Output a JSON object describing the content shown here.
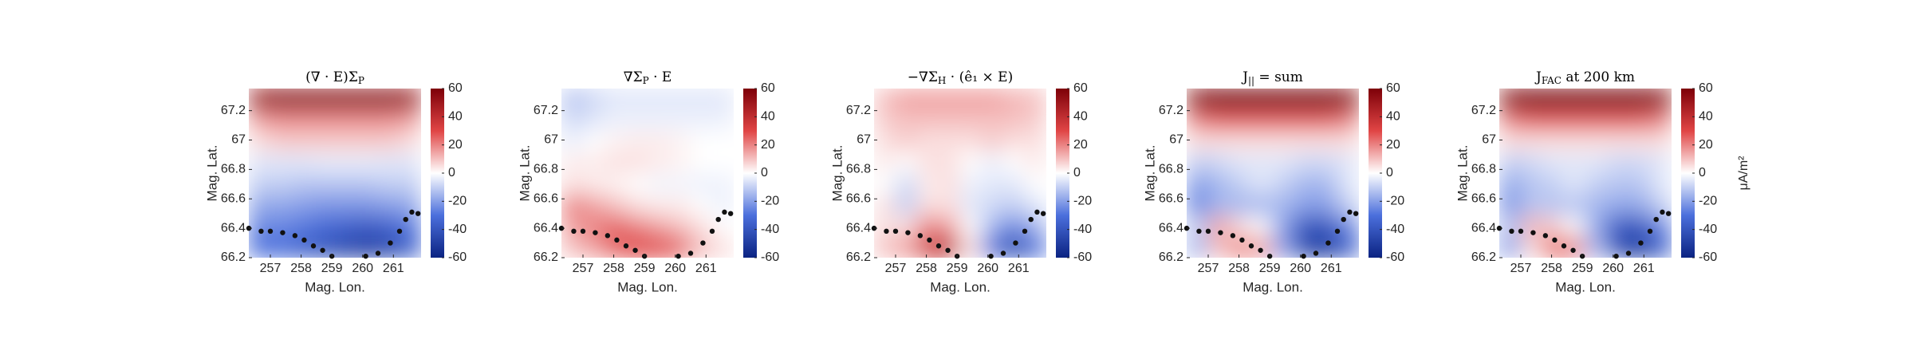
{
  "chart_data": [
    {
      "type": "heatmap",
      "title": "(∇ · E)Σ",
      "title_sub": "P",
      "xlabel": "Mag. Lon.",
      "ylabel": "Mag. Lat.",
      "x": [
        256.65,
        257.35,
        258.05,
        258.75,
        259.45,
        260.15,
        260.85,
        261.55
      ],
      "y": [
        66.272,
        66.416,
        66.559,
        66.703,
        66.847,
        66.991,
        67.134,
        67.278
      ],
      "z": [
        [
          -30,
          -30,
          -35,
          -40,
          -45,
          -48,
          -45,
          -35
        ],
        [
          -25,
          -25,
          -28,
          -32,
          -35,
          -38,
          -35,
          -28
        ],
        [
          -18,
          -18,
          -20,
          -22,
          -22,
          -22,
          -20,
          -18
        ],
        [
          -10,
          -10,
          -12,
          -12,
          -12,
          -12,
          -10,
          -10
        ],
        [
          -5,
          -5,
          -5,
          -4,
          -4,
          -4,
          -5,
          -5
        ],
        [
          5,
          8,
          8,
          8,
          8,
          8,
          8,
          5
        ],
        [
          15,
          18,
          18,
          18,
          18,
          18,
          18,
          15
        ],
        [
          50,
          55,
          55,
          55,
          55,
          55,
          55,
          50
        ]
      ],
      "xlim": [
        256.3,
        261.9
      ],
      "ylim": [
        66.2,
        67.35
      ],
      "xticks": [
        257,
        258,
        259,
        260,
        261
      ],
      "yticks": [
        66.2,
        66.4,
        66.6,
        66.8,
        67,
        67.2
      ],
      "clim": [
        -60,
        60
      ],
      "cticks": [
        -60,
        -40,
        -20,
        0,
        20,
        40,
        60
      ],
      "cmap": [
        "#0b2382",
        "#4b6fdc",
        "#ffffff",
        "#e04545",
        "#7d0008"
      ],
      "boundary": {
        "x": [
          256.3,
          256.7,
          257.0,
          257.4,
          257.8,
          258.1,
          258.4,
          258.7,
          259.0,
          null,
          260.1,
          260.5,
          260.9,
          261.2,
          261.4,
          261.6,
          261.8
        ],
        "y": [
          66.4,
          66.38,
          66.38,
          66.37,
          66.35,
          66.32,
          66.28,
          66.25,
          66.21,
          null,
          66.21,
          66.23,
          66.3,
          66.38,
          66.46,
          66.51,
          66.5
        ]
      }
    },
    {
      "type": "heatmap",
      "title": "∇Σ",
      "title_sub": "P",
      "title_tail": " · E",
      "xlabel": "Mag. Lon.",
      "ylabel": "Mag. Lat.",
      "x": [
        256.65,
        257.35,
        258.05,
        258.75,
        259.45,
        260.15,
        260.85,
        261.55
      ],
      "y": [
        66.272,
        66.416,
        66.559,
        66.703,
        66.847,
        66.991,
        67.134,
        67.278
      ],
      "z": [
        [
          10,
          15,
          25,
          30,
          30,
          25,
          10,
          5
        ],
        [
          15,
          20,
          25,
          20,
          15,
          10,
          5,
          0
        ],
        [
          20,
          15,
          10,
          5,
          3,
          3,
          0,
          -3
        ],
        [
          5,
          3,
          2,
          0,
          -2,
          -2,
          -3,
          -3
        ],
        [
          3,
          3,
          5,
          5,
          3,
          2,
          0,
          0
        ],
        [
          -3,
          0,
          2,
          3,
          3,
          2,
          0,
          0
        ],
        [
          -8,
          -5,
          -3,
          -3,
          -3,
          -3,
          -3,
          -3
        ],
        [
          -12,
          -8,
          -5,
          -5,
          -5,
          -5,
          -5,
          -5
        ]
      ],
      "xlim": [
        256.3,
        261.9
      ],
      "ylim": [
        66.2,
        67.35
      ],
      "xticks": [
        257,
        258,
        259,
        260,
        261
      ],
      "yticks": [
        66.2,
        66.4,
        66.6,
        66.8,
        67,
        67.2
      ],
      "clim": [
        -60,
        60
      ],
      "cticks": [
        -60,
        -40,
        -20,
        0,
        20,
        40,
        60
      ],
      "cmap": [
        "#0b2382",
        "#4b6fdc",
        "#ffffff",
        "#e04545",
        "#7d0008"
      ],
      "boundary": {
        "x": [
          256.3,
          256.7,
          257.0,
          257.4,
          257.8,
          258.1,
          258.4,
          258.7,
          259.0,
          null,
          260.1,
          260.5,
          260.9,
          261.2,
          261.4,
          261.6,
          261.8
        ],
        "y": [
          66.4,
          66.38,
          66.38,
          66.37,
          66.35,
          66.32,
          66.28,
          66.25,
          66.21,
          null,
          66.21,
          66.23,
          66.3,
          66.38,
          66.46,
          66.51,
          66.5
        ]
      }
    },
    {
      "type": "heatmap",
      "title": "−∇Σ",
      "title_sub": "H",
      "title_tail": " · (ê₁ × E)",
      "xlabel": "Mag. Lon.",
      "ylabel": "Mag. Lat.",
      "x": [
        256.65,
        257.35,
        258.05,
        258.75,
        259.45,
        260.15,
        260.85,
        261.55
      ],
      "y": [
        66.272,
        66.416,
        66.559,
        66.703,
        66.847,
        66.991,
        67.134,
        67.278
      ],
      "z": [
        [
          10,
          15,
          35,
          40,
          5,
          -30,
          -45,
          -30
        ],
        [
          5,
          5,
          20,
          15,
          0,
          -15,
          -25,
          -15
        ],
        [
          5,
          -10,
          5,
          5,
          -5,
          -8,
          -10,
          -5
        ],
        [
          0,
          -8,
          3,
          5,
          -3,
          -5,
          -5,
          0
        ],
        [
          3,
          0,
          5,
          5,
          0,
          -3,
          0,
          3
        ],
        [
          5,
          8,
          5,
          5,
          5,
          8,
          5,
          5
        ],
        [
          8,
          10,
          10,
          10,
          10,
          10,
          10,
          8
        ],
        [
          10,
          15,
          15,
          15,
          15,
          15,
          12,
          10
        ]
      ],
      "xlim": [
        256.3,
        261.9
      ],
      "ylim": [
        66.2,
        67.35
      ],
      "xticks": [
        257,
        258,
        259,
        260,
        261
      ],
      "yticks": [
        66.2,
        66.4,
        66.6,
        66.8,
        67,
        67.2
      ],
      "clim": [
        -60,
        60
      ],
      "cticks": [
        -60,
        -40,
        -20,
        0,
        20,
        40,
        60
      ],
      "cmap": [
        "#0b2382",
        "#4b6fdc",
        "#ffffff",
        "#e04545",
        "#7d0008"
      ],
      "boundary": {
        "x": [
          256.3,
          256.7,
          257.0,
          257.4,
          257.8,
          258.1,
          258.4,
          258.7,
          259.0,
          null,
          260.1,
          260.5,
          260.9,
          261.2,
          261.4,
          261.6,
          261.8
        ],
        "y": [
          66.4,
          66.38,
          66.38,
          66.37,
          66.35,
          66.32,
          66.28,
          66.25,
          66.21,
          null,
          66.21,
          66.23,
          66.3,
          66.38,
          66.46,
          66.51,
          66.5
        ]
      }
    },
    {
      "type": "heatmap",
      "title": "J",
      "title_sub": "||",
      "title_tail": " = sum",
      "xlabel": "Mag. Lon.",
      "ylabel": "Mag. Lat.",
      "x": [
        256.65,
        257.35,
        258.05,
        258.75,
        259.45,
        260.15,
        260.85,
        261.55
      ],
      "y": [
        66.272,
        66.416,
        66.559,
        66.703,
        66.847,
        66.991,
        67.134,
        67.278
      ],
      "z": [
        [
          -15,
          10,
          20,
          15,
          -20,
          -45,
          -50,
          -35
        ],
        [
          -10,
          15,
          5,
          0,
          -20,
          -40,
          -40,
          -25
        ],
        [
          -25,
          -15,
          -15,
          -15,
          -15,
          -20,
          -20,
          -10
        ],
        [
          -20,
          -15,
          -10,
          -5,
          -10,
          -15,
          -15,
          -5
        ],
        [
          -10,
          -8,
          -5,
          -5,
          -5,
          -8,
          -8,
          -5
        ],
        [
          5,
          5,
          5,
          5,
          5,
          5,
          5,
          5
        ],
        [
          20,
          25,
          25,
          25,
          25,
          25,
          25,
          20
        ],
        [
          55,
          60,
          60,
          60,
          60,
          60,
          60,
          55
        ]
      ],
      "xlim": [
        256.3,
        261.9
      ],
      "ylim": [
        66.2,
        67.35
      ],
      "xticks": [
        257,
        258,
        259,
        260,
        261
      ],
      "yticks": [
        66.2,
        66.4,
        66.6,
        66.8,
        67,
        67.2
      ],
      "clim": [
        -60,
        60
      ],
      "cticks": [
        -60,
        -40,
        -20,
        0,
        20,
        40,
        60
      ],
      "cmap": [
        "#0b2382",
        "#4b6fdc",
        "#ffffff",
        "#e04545",
        "#7d0008"
      ],
      "boundary": {
        "x": [
          256.3,
          256.7,
          257.0,
          257.4,
          257.8,
          258.1,
          258.4,
          258.7,
          259.0,
          null,
          260.1,
          260.5,
          260.9,
          261.2,
          261.4,
          261.6,
          261.8
        ],
        "y": [
          66.4,
          66.38,
          66.38,
          66.37,
          66.35,
          66.32,
          66.28,
          66.25,
          66.21,
          null,
          66.21,
          66.23,
          66.3,
          66.38,
          66.46,
          66.51,
          66.5
        ]
      }
    },
    {
      "type": "heatmap",
      "title": "J",
      "title_sub": "FAC",
      "title_tail": " at 200 km",
      "xlabel": "Mag. Lon.",
      "ylabel": "Mag. Lat.",
      "x": [
        256.65,
        257.35,
        258.05,
        258.75,
        259.45,
        260.15,
        260.85,
        261.55
      ],
      "y": [
        66.272,
        66.416,
        66.559,
        66.703,
        66.847,
        66.991,
        67.134,
        67.278
      ],
      "z": [
        [
          -20,
          5,
          25,
          20,
          -15,
          -42,
          -50,
          -35
        ],
        [
          -12,
          12,
          8,
          0,
          -18,
          -38,
          -40,
          -25
        ],
        [
          -22,
          -12,
          -12,
          -12,
          -15,
          -18,
          -18,
          -10
        ],
        [
          -18,
          -12,
          -10,
          -5,
          -10,
          -12,
          -12,
          -5
        ],
        [
          -10,
          -8,
          -5,
          -5,
          -5,
          -8,
          -8,
          -5
        ],
        [
          5,
          5,
          5,
          5,
          5,
          5,
          5,
          5
        ],
        [
          20,
          25,
          25,
          25,
          25,
          25,
          25,
          20
        ],
        [
          55,
          60,
          60,
          60,
          60,
          60,
          60,
          55
        ]
      ],
      "xlim": [
        256.3,
        261.9
      ],
      "ylim": [
        66.2,
        67.35
      ],
      "xticks": [
        257,
        258,
        259,
        260,
        261
      ],
      "yticks": [
        66.2,
        66.4,
        66.6,
        66.8,
        67,
        67.2
      ],
      "clim": [
        -60,
        60
      ],
      "cticks": [
        -60,
        -40,
        -20,
        0,
        20,
        40,
        60
      ],
      "cmap": [
        "#0b2382",
        "#4b6fdc",
        "#ffffff",
        "#e04545",
        "#7d0008"
      ],
      "colorbar_label": "μA/m²",
      "boundary": {
        "x": [
          256.3,
          256.7,
          257.0,
          257.4,
          257.8,
          258.1,
          258.4,
          258.7,
          259.0,
          null,
          260.1,
          260.5,
          260.9,
          261.2,
          261.4,
          261.6,
          261.8
        ],
        "y": [
          66.4,
          66.38,
          66.38,
          66.37,
          66.35,
          66.32,
          66.28,
          66.25,
          66.21,
          null,
          66.21,
          66.23,
          66.3,
          66.38,
          66.46,
          66.51,
          66.5
        ]
      }
    }
  ]
}
